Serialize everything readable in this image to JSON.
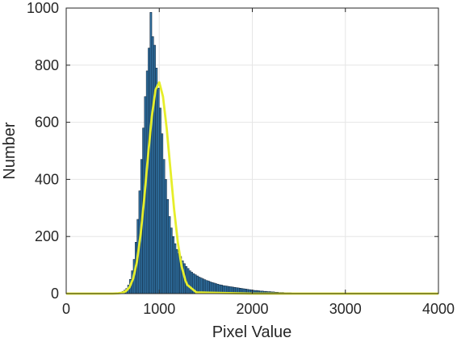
{
  "chart_data": {
    "type": "bar",
    "xlabel": "Pixel Value",
    "ylabel": "Number",
    "xlim": [
      0,
      4000
    ],
    "ylim": [
      0,
      1000
    ],
    "xticks": [
      0,
      1000,
      2000,
      3000,
      4000
    ],
    "yticks": [
      0,
      200,
      400,
      600,
      800,
      1000
    ],
    "grid": true,
    "colors": {
      "bars_fill": "#2f6f9f",
      "bars_edge": "#0d1f33",
      "fit_line": "#e6ee2a",
      "grid": "#e6e6e6",
      "axes": "#262626"
    },
    "series": [
      {
        "type": "histogram",
        "bin_width": 20,
        "bins": [
          {
            "x": 560,
            "y": 3
          },
          {
            "x": 580,
            "y": 5
          },
          {
            "x": 600,
            "y": 8
          },
          {
            "x": 620,
            "y": 12
          },
          {
            "x": 640,
            "y": 18
          },
          {
            "x": 660,
            "y": 30
          },
          {
            "x": 680,
            "y": 50
          },
          {
            "x": 700,
            "y": 80
          },
          {
            "x": 720,
            "y": 120
          },
          {
            "x": 740,
            "y": 180
          },
          {
            "x": 760,
            "y": 260
          },
          {
            "x": 780,
            "y": 360
          },
          {
            "x": 800,
            "y": 470
          },
          {
            "x": 820,
            "y": 580
          },
          {
            "x": 840,
            "y": 690
          },
          {
            "x": 860,
            "y": 780
          },
          {
            "x": 880,
            "y": 860
          },
          {
            "x": 900,
            "y": 985
          },
          {
            "x": 920,
            "y": 900
          },
          {
            "x": 940,
            "y": 870
          },
          {
            "x": 960,
            "y": 790
          },
          {
            "x": 980,
            "y": 720
          },
          {
            "x": 1000,
            "y": 650
          },
          {
            "x": 1020,
            "y": 560
          },
          {
            "x": 1040,
            "y": 470
          },
          {
            "x": 1060,
            "y": 400
          },
          {
            "x": 1080,
            "y": 330
          },
          {
            "x": 1100,
            "y": 270
          },
          {
            "x": 1120,
            "y": 230
          },
          {
            "x": 1140,
            "y": 200
          },
          {
            "x": 1160,
            "y": 175
          },
          {
            "x": 1180,
            "y": 155
          },
          {
            "x": 1200,
            "y": 140
          },
          {
            "x": 1220,
            "y": 130
          },
          {
            "x": 1240,
            "y": 115
          },
          {
            "x": 1260,
            "y": 105
          },
          {
            "x": 1280,
            "y": 95
          },
          {
            "x": 1300,
            "y": 88
          },
          {
            "x": 1320,
            "y": 80
          },
          {
            "x": 1340,
            "y": 75
          },
          {
            "x": 1360,
            "y": 70
          },
          {
            "x": 1380,
            "y": 66
          },
          {
            "x": 1400,
            "y": 62
          },
          {
            "x": 1420,
            "y": 58
          },
          {
            "x": 1440,
            "y": 55
          },
          {
            "x": 1460,
            "y": 52
          },
          {
            "x": 1480,
            "y": 49
          },
          {
            "x": 1500,
            "y": 46
          },
          {
            "x": 1520,
            "y": 44
          },
          {
            "x": 1540,
            "y": 41
          },
          {
            "x": 1560,
            "y": 39
          },
          {
            "x": 1580,
            "y": 37
          },
          {
            "x": 1600,
            "y": 35
          },
          {
            "x": 1620,
            "y": 33
          },
          {
            "x": 1640,
            "y": 31
          },
          {
            "x": 1660,
            "y": 30
          },
          {
            "x": 1680,
            "y": 28
          },
          {
            "x": 1700,
            "y": 27
          },
          {
            "x": 1720,
            "y": 26
          },
          {
            "x": 1740,
            "y": 25
          },
          {
            "x": 1760,
            "y": 24
          },
          {
            "x": 1780,
            "y": 23
          },
          {
            "x": 1800,
            "y": 22
          },
          {
            "x": 1820,
            "y": 21
          },
          {
            "x": 1840,
            "y": 20
          },
          {
            "x": 1860,
            "y": 19
          },
          {
            "x": 1880,
            "y": 18
          },
          {
            "x": 1900,
            "y": 17
          },
          {
            "x": 1920,
            "y": 16
          },
          {
            "x": 1940,
            "y": 15
          },
          {
            "x": 1960,
            "y": 14
          },
          {
            "x": 1980,
            "y": 13
          },
          {
            "x": 2000,
            "y": 12
          },
          {
            "x": 2020,
            "y": 11
          },
          {
            "x": 2040,
            "y": 11
          },
          {
            "x": 2060,
            "y": 10
          },
          {
            "x": 2080,
            "y": 9
          },
          {
            "x": 2100,
            "y": 9
          },
          {
            "x": 2120,
            "y": 8
          },
          {
            "x": 2140,
            "y": 8
          },
          {
            "x": 2160,
            "y": 7
          },
          {
            "x": 2180,
            "y": 7
          },
          {
            "x": 2200,
            "y": 6
          },
          {
            "x": 2220,
            "y": 6
          },
          {
            "x": 2240,
            "y": 5
          },
          {
            "x": 2260,
            "y": 5
          },
          {
            "x": 2280,
            "y": 4
          },
          {
            "x": 2300,
            "y": 4
          },
          {
            "x": 2320,
            "y": 4
          },
          {
            "x": 2340,
            "y": 3
          },
          {
            "x": 2360,
            "y": 3
          },
          {
            "x": 2380,
            "y": 3
          },
          {
            "x": 2400,
            "y": 3
          },
          {
            "x": 2420,
            "y": 2
          },
          {
            "x": 2440,
            "y": 2
          },
          {
            "x": 2460,
            "y": 2
          },
          {
            "x": 2480,
            "y": 2
          },
          {
            "x": 2500,
            "y": 2
          },
          {
            "x": 2540,
            "y": 2
          },
          {
            "x": 2580,
            "y": 1
          },
          {
            "x": 2620,
            "y": 1
          },
          {
            "x": 2660,
            "y": 1
          },
          {
            "x": 2700,
            "y": 1
          },
          {
            "x": 2760,
            "y": 1
          },
          {
            "x": 2820,
            "y": 1
          },
          {
            "x": 2900,
            "y": 1
          },
          {
            "x": 2980,
            "y": 1
          },
          {
            "x": 3060,
            "y": 1
          },
          {
            "x": 3140,
            "y": 1
          },
          {
            "x": 3260,
            "y": 1
          },
          {
            "x": 3400,
            "y": 1
          },
          {
            "x": 3540,
            "y": 1
          },
          {
            "x": 3700,
            "y": 1
          },
          {
            "x": 3900,
            "y": 1
          }
        ]
      },
      {
        "type": "line",
        "x": [
          0,
          500,
          560,
          600,
          640,
          680,
          720,
          760,
          800,
          840,
          880,
          920,
          960,
          1000,
          1040,
          1080,
          1120,
          1160,
          1200,
          1240,
          1280,
          1300,
          1400,
          2000,
          3000,
          4000
        ],
        "y": [
          0,
          0,
          1,
          3,
          8,
          22,
          53,
          112,
          208,
          338,
          485,
          620,
          714,
          740,
          690,
          578,
          435,
          294,
          178,
          96,
          47,
          31,
          4,
          0,
          0,
          0
        ]
      }
    ]
  }
}
